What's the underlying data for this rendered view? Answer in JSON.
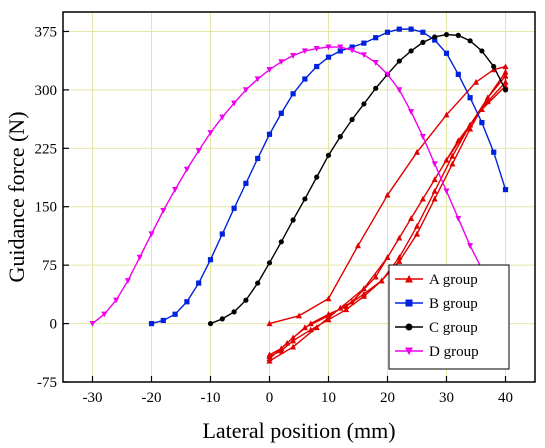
{
  "chart_data": {
    "type": "line",
    "xlabel": "Lateral position (mm)",
    "ylabel": "Guidance force (N)",
    "xlim": [
      -35,
      45
    ],
    "ylim": [
      -75,
      400
    ],
    "xticks": [
      -30,
      -20,
      -10,
      0,
      10,
      20,
      30,
      40
    ],
    "yticks": [
      -75,
      0,
      75,
      150,
      225,
      300,
      375
    ],
    "grid": true,
    "legend_position": "bottom-right",
    "series": [
      {
        "name": "A group",
        "color": "#e00000",
        "marker": "triangle-up",
        "x": [
          0,
          5,
          10,
          15,
          20,
          25,
          30,
          35,
          38,
          40,
          40,
          37,
          34,
          31,
          28,
          25,
          22,
          19,
          16,
          13,
          10,
          7,
          4,
          2,
          0,
          0,
          3,
          6,
          10,
          14,
          18,
          22,
          26,
          30,
          34,
          37,
          40,
          40,
          37,
          34,
          31,
          28,
          25,
          22,
          19,
          16,
          13,
          10,
          7,
          4,
          2,
          0,
          0,
          4,
          8,
          12,
          16,
          20,
          24,
          28,
          32,
          36,
          40
        ],
        "y": [
          0,
          10,
          32,
          100,
          165,
          220,
          268,
          310,
          326,
          330,
          323,
          290,
          250,
          205,
          160,
          115,
          80,
          55,
          38,
          22,
          12,
          0,
          -18,
          -32,
          -40,
          -45,
          -25,
          -5,
          10,
          28,
          60,
          110,
          160,
          210,
          255,
          285,
          310,
          318,
          290,
          255,
          215,
          170,
          125,
          85,
          55,
          35,
          18,
          5,
          -8,
          -22,
          -35,
          -42,
          -48,
          -30,
          -5,
          20,
          45,
          85,
          135,
          185,
          235,
          275,
          305
        ]
      },
      {
        "name": "B group",
        "color": "#0022dd",
        "marker": "square",
        "x": [
          -20,
          -18,
          -16,
          -14,
          -12,
          -10,
          -8,
          -6,
          -4,
          -2,
          0,
          2,
          4,
          6,
          8,
          10,
          12,
          14,
          16,
          18,
          20,
          22,
          24,
          26,
          28,
          30,
          32,
          34,
          36,
          38,
          40
        ],
        "y": [
          0,
          4,
          12,
          28,
          52,
          82,
          115,
          148,
          180,
          212,
          243,
          270,
          295,
          314,
          330,
          342,
          350,
          355,
          360,
          367,
          374,
          378,
          378,
          374,
          364,
          347,
          320,
          290,
          258,
          220,
          172
        ]
      },
      {
        "name": "C group",
        "color": "#000000",
        "marker": "circle",
        "x": [
          -10,
          -8,
          -6,
          -4,
          -2,
          0,
          2,
          4,
          6,
          8,
          10,
          12,
          14,
          16,
          18,
          20,
          22,
          24,
          26,
          28,
          30,
          32,
          34,
          36,
          38,
          40
        ],
        "y": [
          0,
          6,
          15,
          30,
          52,
          78,
          105,
          133,
          160,
          188,
          216,
          240,
          262,
          282,
          302,
          320,
          337,
          350,
          361,
          368,
          371,
          370,
          363,
          350,
          330,
          300
        ]
      },
      {
        "name": "D group",
        "color": "#ee00ee",
        "marker": "triangle-down",
        "x": [
          -30,
          -28,
          -26,
          -24,
          -22,
          -20,
          -18,
          -16,
          -14,
          -12,
          -10,
          -8,
          -6,
          -4,
          -2,
          0,
          2,
          4,
          6,
          8,
          10,
          12,
          14,
          16,
          18,
          20,
          22,
          24,
          26,
          28,
          30,
          32,
          34,
          36,
          38,
          40
        ],
        "y": [
          0,
          12,
          30,
          55,
          85,
          115,
          145,
          172,
          198,
          222,
          245,
          265,
          283,
          300,
          314,
          326,
          336,
          344,
          350,
          353,
          355,
          355,
          351,
          345,
          335,
          320,
          300,
          272,
          240,
          205,
          170,
          135,
          100,
          70,
          45,
          22
        ]
      }
    ]
  }
}
